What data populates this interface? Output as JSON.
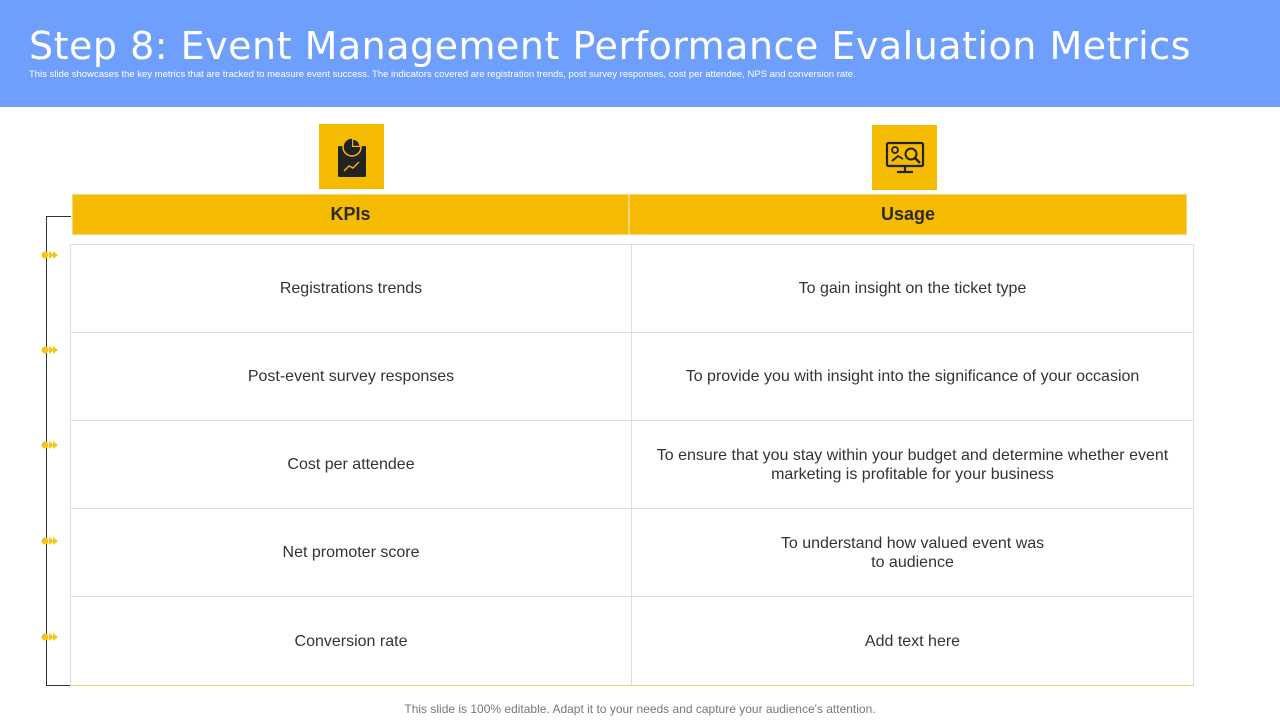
{
  "header": {
    "title": "Step 8: Event Management Performance Evaluation Metrics",
    "subtitle": "This slide showcases the key metrics that are tracked to measure event success. The indicators covered are registration trends, post survey responses, cost per attendee, NPS and conversion rate."
  },
  "icons": {
    "kpi_icon": "report-chart-icon",
    "usage_icon": "analytics-monitor-icon",
    "marker_icon": "double-arrow-icon"
  },
  "table": {
    "columns": [
      "KPIs",
      "Usage"
    ],
    "rows": [
      {
        "kpi": "Registrations trends",
        "usage": "To gain insight on the ticket type"
      },
      {
        "kpi": "Post-event survey responses",
        "usage": "To provide you with insight into the significance of your occasion"
      },
      {
        "kpi": "Cost per attendee",
        "usage": "To ensure that you stay within your budget and determine whether event marketing is profitable for your business"
      },
      {
        "kpi": "Net promoter score",
        "usage": "To understand  how valued event was\nto audience"
      },
      {
        "kpi": "Conversion rate",
        "usage": "Add text here"
      }
    ]
  },
  "footer": "This slide is 100% editable. Adapt it to your needs and capture your audience's attention.",
  "colors": {
    "header_bg": "#6f9ffc",
    "accent": "#f5bb00",
    "text": "#333333"
  }
}
